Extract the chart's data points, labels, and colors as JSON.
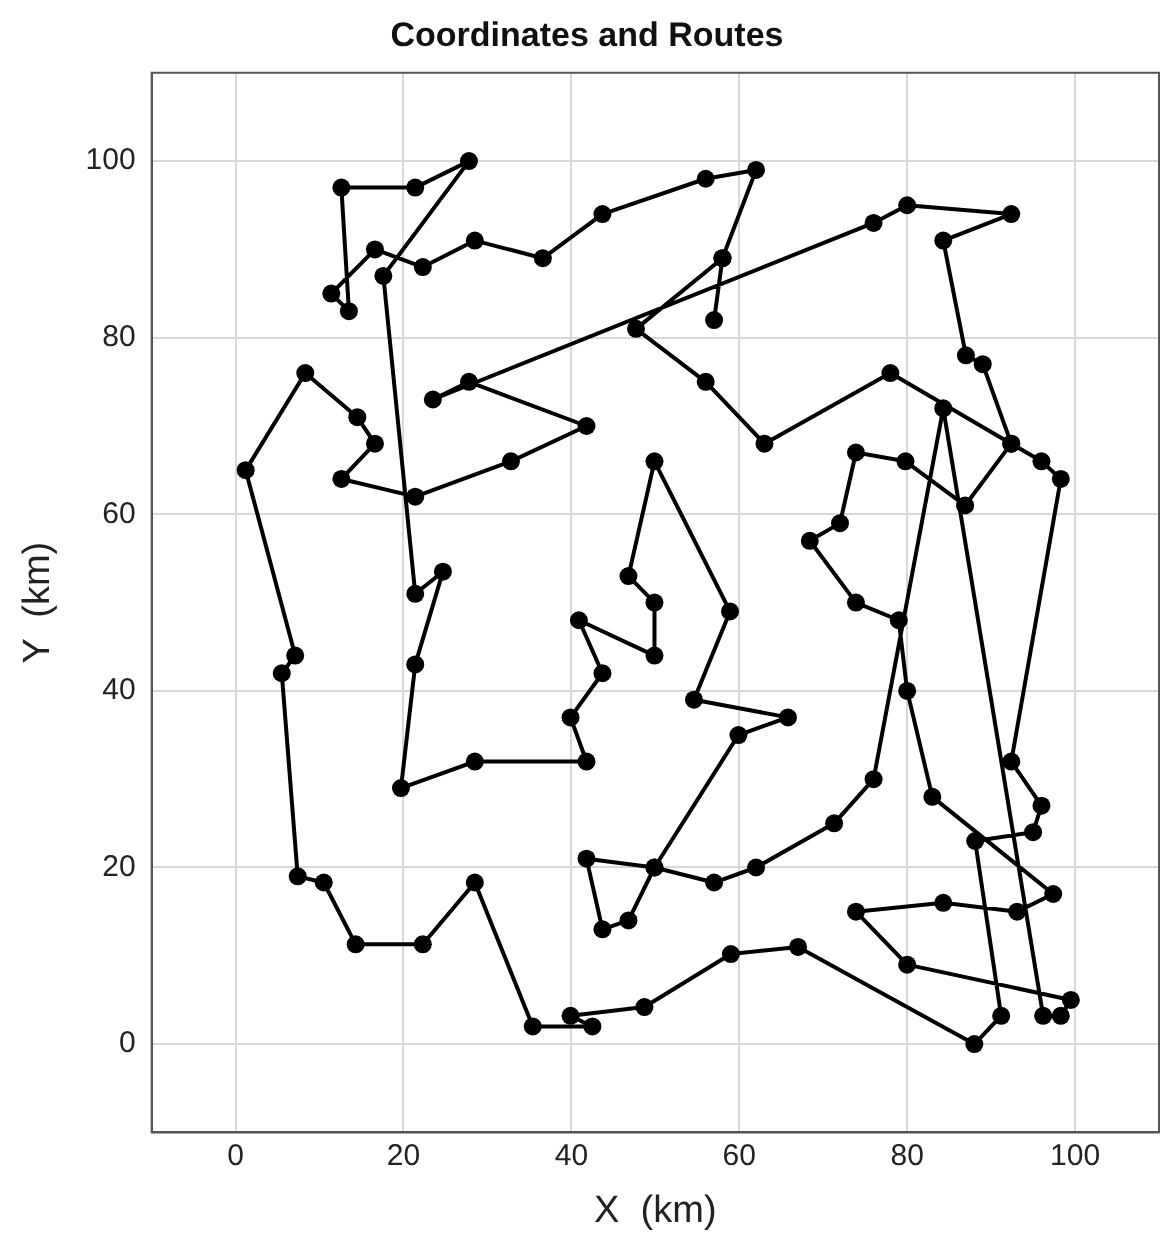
{
  "chart_data": {
    "type": "line",
    "title": "Coordinates and Routes",
    "xlabel": "X  (km)",
    "ylabel": "Y  (km)",
    "xlim": [
      -10,
      110
    ],
    "ylim": [
      -10,
      110
    ],
    "xticks": [
      0,
      20,
      40,
      60,
      80,
      100
    ],
    "yticks": [
      0,
      20,
      40,
      60,
      80,
      100
    ],
    "grid": true,
    "legend": false,
    "marker": "circle",
    "line_style": "solid",
    "series": [
      {
        "color": "#000000",
        "x": [
          57,
          58,
          62,
          56,
          43.7,
          36.6,
          28.5,
          22.3,
          16.6,
          11.4,
          13.5,
          12.6,
          21.4,
          27.8,
          17.6,
          21.4,
          24.7,
          21.4,
          19.7,
          28.5,
          41.8,
          39.9,
          43.7,
          40.9,
          49.9,
          49.9,
          46.8,
          49.9,
          58.9,
          54.6,
          65.8,
          59.9,
          49.9,
          41.8,
          43.7,
          46.8,
          49.9,
          57,
          62,
          71.3,
          76,
          84.3,
          96.2,
          98.3,
          99.5,
          80,
          73.9,
          84.3,
          93.1,
          97.4,
          83,
          80,
          79,
          73.9,
          68.4,
          72,
          73.9,
          79.8,
          86.9,
          92.4,
          96,
          98.3,
          92.4,
          96,
          95,
          88.1,
          91.2,
          88,
          67,
          59,
          48.7,
          39.9,
          42.5,
          35.4,
          28.5,
          22.3,
          14.3,
          10.5,
          7.4,
          5.5,
          7.1,
          1.2,
          8.3,
          14.5,
          16.6,
          12.6,
          21.4,
          32.8,
          41.8,
          27.8,
          23.5,
          76,
          80,
          92.4,
          84.3,
          87,
          89,
          92.4,
          78,
          63,
          56,
          47.7,
          58
        ],
        "values": [
          82,
          89,
          99,
          98,
          94,
          89,
          91,
          88,
          90,
          85,
          83,
          97,
          97,
          100,
          87,
          51,
          53.5,
          43,
          29,
          32,
          32,
          37,
          42,
          48,
          44,
          50,
          53,
          66,
          49,
          39,
          37,
          35,
          20,
          21,
          13,
          14,
          20,
          18.3,
          20,
          25,
          30,
          72,
          3.2,
          3.2,
          5,
          9,
          15,
          16,
          15,
          17,
          28,
          40,
          48,
          50,
          57,
          59,
          67,
          66,
          61,
          68,
          66,
          64,
          32,
          27,
          24,
          23,
          3.2,
          0,
          11,
          10.2,
          4.2,
          3.2,
          2,
          2,
          18.3,
          11.3,
          11.3,
          18.3,
          19,
          42,
          44,
          65,
          76,
          71,
          68,
          64,
          62,
          66,
          70,
          75,
          73,
          93,
          95,
          94,
          91,
          78,
          77,
          68,
          76,
          68,
          75,
          81,
          89
        ]
      }
    ]
  }
}
